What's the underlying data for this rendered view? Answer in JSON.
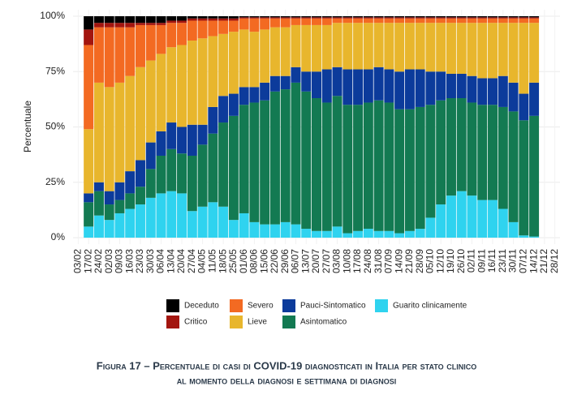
{
  "chart_data": {
    "type": "stacked_bar",
    "title": "Figura 17 – Percentuale di casi di COVID-19 diagnosticati in Italia per stato clinico",
    "subtitle": "al momento della diagnosi e settimana di diagnosi",
    "y_label": "Percentuale",
    "categories": [
      "03/02",
      "17/02",
      "24/02",
      "02/03",
      "09/03",
      "16/03",
      "23/03",
      "30/03",
      "06/04",
      "13/04",
      "20/04",
      "27/04",
      "04/05",
      "11/05",
      "18/05",
      "25/05",
      "01/06",
      "08/06",
      "15/06",
      "22/06",
      "29/06",
      "06/07",
      "13/07",
      "20/07",
      "27/07",
      "03/08",
      "10/08",
      "17/08",
      "24/08",
      "31/08",
      "07/09",
      "14/09",
      "21/09",
      "28/09",
      "05/10",
      "12/10",
      "19/10",
      "26/10",
      "02/11",
      "09/11",
      "16/11",
      "23/11",
      "30/11",
      "07/12",
      "14/12",
      "21/12",
      "28/12"
    ],
    "series": [
      {
        "name": "Guarito clinicamente",
        "color": "#2fd3ef",
        "values": [
          null,
          5,
          10,
          8,
          11,
          13,
          15,
          18,
          20,
          21,
          20,
          12,
          14,
          16,
          14,
          8,
          11,
          7,
          6,
          6,
          7,
          6,
          4,
          3,
          3,
          5,
          2,
          3,
          4,
          3,
          3,
          2,
          3,
          4,
          9,
          15,
          19,
          21,
          19,
          17,
          17,
          13,
          7,
          1,
          0.5,
          null,
          null
        ]
      },
      {
        "name": "Asintomatico",
        "color": "#137a52",
        "values": [
          null,
          11,
          11,
          7,
          6,
          7,
          8,
          13,
          17,
          19,
          18,
          25,
          28,
          31,
          38,
          47,
          49,
          54,
          56,
          60,
          60,
          64,
          62,
          60,
          58,
          59,
          58,
          57,
          57,
          59,
          58,
          56,
          55,
          55,
          51,
          47,
          44,
          42,
          42,
          43,
          43,
          46,
          50,
          52,
          54.5,
          null,
          null
        ]
      },
      {
        "name": "Pauci-Sintomatico",
        "color": "#0c3b9b",
        "values": [
          null,
          4,
          4,
          6,
          8,
          10,
          12,
          12,
          11,
          12,
          12,
          14,
          9,
          12,
          12,
          10,
          8,
          7,
          8,
          7,
          6,
          7,
          9,
          12,
          15,
          13,
          16,
          16,
          15,
          15,
          15,
          17,
          18,
          17,
          15,
          13,
          11,
          11,
          12,
          12,
          12,
          14,
          13,
          12,
          15,
          null,
          null
        ]
      },
      {
        "name": "Lieve",
        "color": "#e8b62d",
        "values": [
          null,
          29,
          45,
          47,
          45,
          43,
          42,
          37,
          35,
          34,
          37,
          38,
          39,
          32,
          28,
          28,
          26,
          25,
          24,
          22,
          22,
          19,
          21,
          21,
          20,
          20,
          21,
          21,
          21,
          20,
          21,
          22,
          21,
          21,
          22,
          22,
          23,
          23,
          24,
          25,
          25,
          24,
          27,
          32,
          27,
          null,
          null
        ]
      },
      {
        "name": "Severo",
        "color": "#f36a22",
        "values": [
          null,
          38,
          25,
          27,
          25,
          22,
          19,
          16,
          13,
          11,
          10,
          9,
          8,
          7,
          6,
          5,
          5,
          6,
          5,
          4,
          4,
          3,
          3,
          3,
          3,
          2,
          2,
          2,
          2,
          2,
          2,
          2,
          2,
          2,
          2,
          2,
          2,
          2,
          2,
          2,
          2,
          2,
          2,
          2,
          2,
          null,
          null
        ]
      },
      {
        "name": "Critico",
        "color": "#a3150f",
        "values": [
          null,
          7,
          2,
          2,
          2,
          2,
          1,
          1,
          1,
          1,
          1,
          1,
          1,
          1,
          1,
          1,
          0.5,
          0.5,
          0.5,
          0.5,
          0.5,
          0.5,
          0.5,
          0.5,
          0.5,
          0.5,
          0.5,
          0.5,
          0.5,
          0.5,
          0.5,
          0.5,
          0.5,
          0.5,
          0.5,
          0.5,
          0.5,
          0.5,
          0.5,
          0.5,
          0.5,
          0.5,
          0.5,
          0.5,
          0.5,
          null,
          null
        ]
      },
      {
        "name": "Deceduto",
        "color": "#000000",
        "values": [
          null,
          6,
          3,
          3,
          3,
          3,
          3,
          3,
          3,
          2,
          2,
          1,
          1,
          1,
          1,
          1,
          0.5,
          0.5,
          0.5,
          0.5,
          0.5,
          0.5,
          0.5,
          0.5,
          0.5,
          0.5,
          0.5,
          0.5,
          0.5,
          0.5,
          0.5,
          0.5,
          0.5,
          0.5,
          0.5,
          0.5,
          0.5,
          0.5,
          0.5,
          0.5,
          0.5,
          0.5,
          0.5,
          0.5,
          0.5,
          null,
          null
        ]
      }
    ],
    "ylim": [
      0,
      100
    ],
    "yticks": [
      {
        "value": 0,
        "label": "0%"
      },
      {
        "value": 25,
        "label": "25%"
      },
      {
        "value": 50,
        "label": "50%"
      },
      {
        "value": 75,
        "label": "75%"
      },
      {
        "value": 100,
        "label": "100%"
      }
    ],
    "grid": true
  }
}
